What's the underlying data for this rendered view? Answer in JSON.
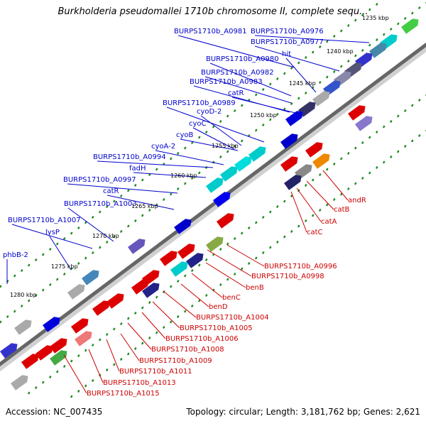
{
  "title": "Burkholderia pseudomallei 1710b chromosome II, complete sequ...",
  "accession": "Accession: NC_007435",
  "topology": "Topology: circular; Length: 3,181,762 bp; Genes: 2,621",
  "scale_ticks": [
    {
      "label": "1235 kbp"
    },
    {
      "label": "1240 kbp"
    },
    {
      "label": "1245 kbp"
    },
    {
      "label": "1250 kbp"
    },
    {
      "label": "1255 kbp"
    },
    {
      "label": "1260 kbp"
    },
    {
      "label": "1265 kbp"
    },
    {
      "label": "1270 kbp"
    },
    {
      "label": "1275 kbp"
    },
    {
      "label": "1280 kbp"
    }
  ],
  "forward_labels": [
    "BURPS1710b_A0981",
    "BURPS1710b_A0976",
    "BURPS1710b_A0977",
    "hit",
    "BURPS1710b_A0980",
    "BURPS1710b_A0982",
    "BURPS1710b_A0983",
    "catR",
    "BURPS1710b_A0989",
    "cyoD-2",
    "cyoC",
    "cyoB",
    "cyoA-2",
    "BURPS1710b_A0994",
    "fadH",
    "BURPS1710b_A0997",
    "catR",
    "BURPS1710b_A1003",
    "BURPS1710b_A1007",
    "lysP",
    "phbB-2"
  ],
  "reverse_labels": [
    "andR",
    "catB",
    "catA",
    "catC",
    "BURPS1710b_A0996",
    "BURPS1710b_A0998",
    "benB",
    "benC",
    "benD",
    "BURPS1710b_A1004",
    "BURPS1710b_A1005",
    "BURPS1710b_A1006",
    "BURPS1710b_A1008",
    "BURPS1710b_A1009",
    "BURPS1710b_A1011",
    "BURPS1710b_A1013",
    "BURPS1710b_A1015"
  ],
  "colors": {
    "forward_label": "#0000cc",
    "reverse_label": "#cc0000",
    "backbone": "#555555",
    "tick_dots": "#228b22"
  }
}
